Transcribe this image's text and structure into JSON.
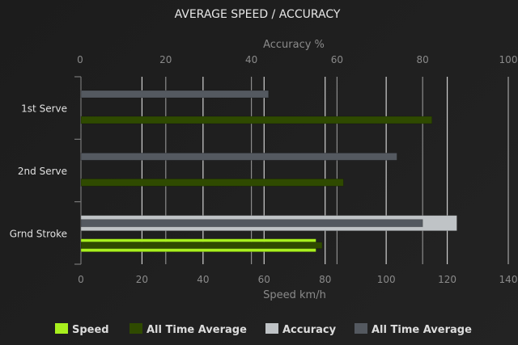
{
  "chart_data": {
    "type": "bar",
    "orientation": "horizontal",
    "title": "AVERAGE SPEED / ACCURACY",
    "categories": [
      "1st Serve",
      "2nd Serve",
      "Grnd Stroke"
    ],
    "x_axis_bottom": {
      "label": "Speed km/h",
      "range": [
        0,
        140
      ],
      "ticks": [
        0,
        20,
        40,
        60,
        80,
        100,
        120,
        140
      ]
    },
    "x_axis_top": {
      "label": "Accuracy %",
      "range": [
        0,
        100
      ],
      "ticks": [
        0,
        20,
        40,
        60,
        80,
        100
      ]
    },
    "grid": true,
    "legend_position": "bottom",
    "series": [
      {
        "name": "Speed",
        "axis": "speed",
        "color": "#a8f01e",
        "values": [
          null,
          null,
          77
        ]
      },
      {
        "name": "All Time Average",
        "axis": "speed",
        "color": "#2f4a00",
        "values": [
          115,
          86,
          79
        ]
      },
      {
        "name": "Accuracy",
        "axis": "accuracy",
        "color": "#bfc3c6",
        "values": [
          null,
          null,
          88
        ]
      },
      {
        "name": "All Time Average",
        "axis": "accuracy",
        "color": "#545960",
        "values": [
          44,
          74,
          80
        ]
      }
    ]
  }
}
